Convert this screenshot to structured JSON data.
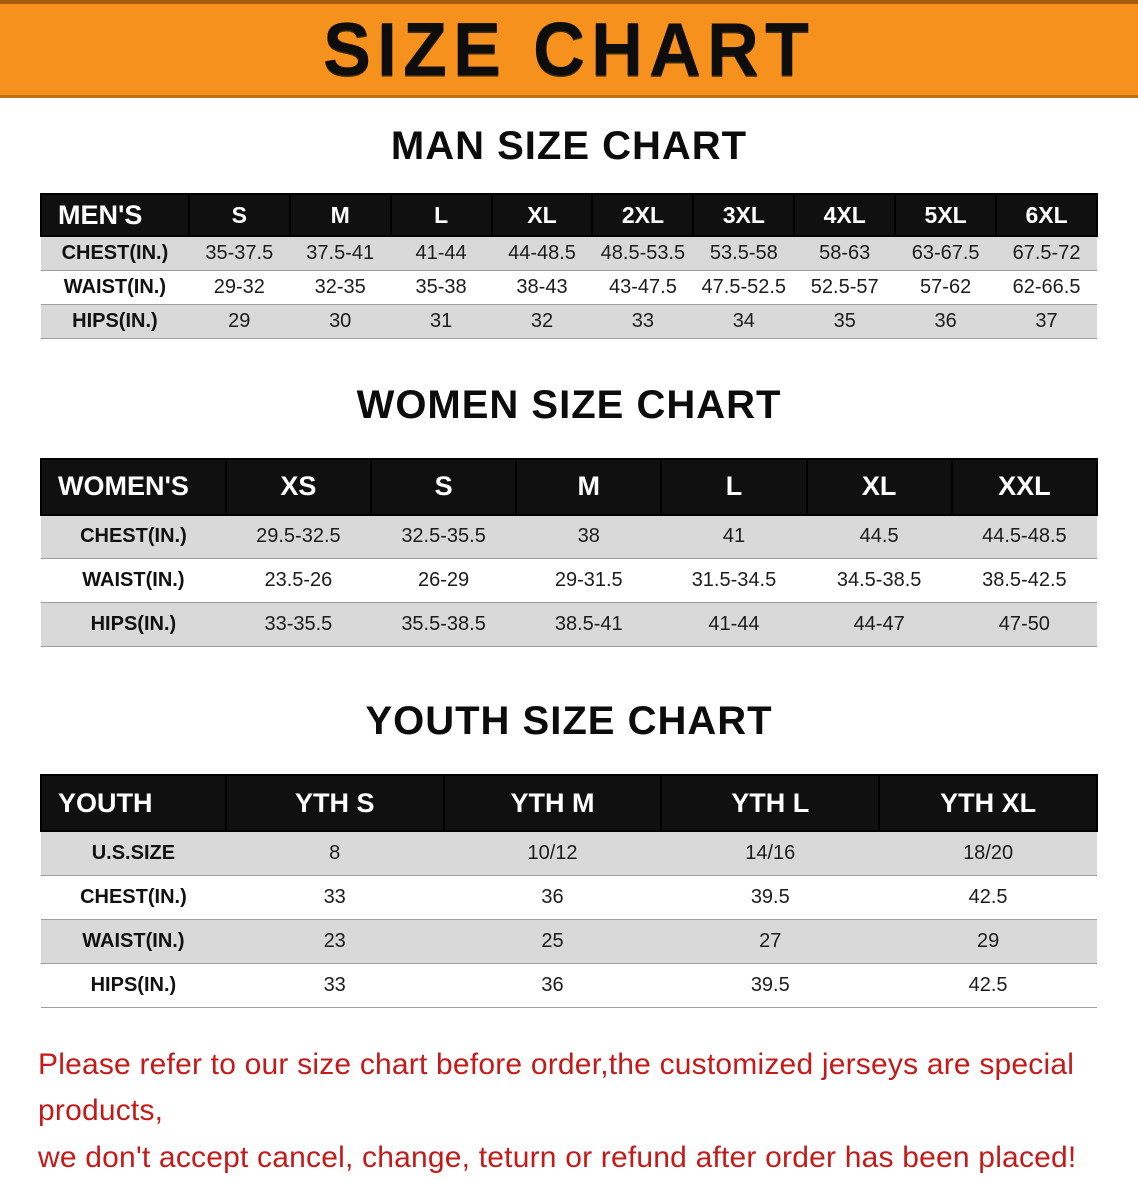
{
  "banner": {
    "title": "SIZE CHART",
    "bg_color": "#f6911e",
    "text_color": "#0d0d0d"
  },
  "men": {
    "heading": "MAN SIZE CHART",
    "header": [
      "MEN'S",
      "S",
      "M",
      "L",
      "XL",
      "2XL",
      "3XL",
      "4XL",
      "5XL",
      "6XL"
    ],
    "rows": [
      {
        "label": "CHEST(IN.)",
        "values": [
          "35-37.5",
          "37.5-41",
          "41-44",
          "44-48.5",
          "48.5-53.5",
          "53.5-58",
          "58-63",
          "63-67.5",
          "67.5-72"
        ]
      },
      {
        "label": "WAIST(IN.)",
        "values": [
          "29-32",
          "32-35",
          "35-38",
          "38-43",
          "43-47.5",
          "47.5-52.5",
          "52.5-57",
          "57-62",
          "62-66.5"
        ]
      },
      {
        "label": "HIPS(IN.)",
        "values": [
          "29",
          "30",
          "31",
          "32",
          "33",
          "34",
          "35",
          "36",
          "37"
        ]
      }
    ]
  },
  "women": {
    "heading": "WOMEN SIZE CHART",
    "header": [
      "WOMEN'S",
      "XS",
      "S",
      "M",
      "L",
      "XL",
      "XXL"
    ],
    "rows": [
      {
        "label": "CHEST(IN.)",
        "values": [
          "29.5-32.5",
          "32.5-35.5",
          "38",
          "41",
          "44.5",
          "44.5-48.5"
        ]
      },
      {
        "label": "WAIST(IN.)",
        "values": [
          "23.5-26",
          "26-29",
          "29-31.5",
          "31.5-34.5",
          "34.5-38.5",
          "38.5-42.5"
        ]
      },
      {
        "label": "HIPS(IN.)",
        "values": [
          "33-35.5",
          "35.5-38.5",
          "38.5-41",
          "41-44",
          "44-47",
          "47-50"
        ]
      }
    ]
  },
  "youth": {
    "heading": "YOUTH SIZE CHART",
    "header": [
      "YOUTH",
      "YTH S",
      "YTH M",
      "YTH L",
      "YTH XL"
    ],
    "rows": [
      {
        "label": "U.S.SIZE",
        "values": [
          "8",
          "10/12",
          "14/16",
          "18/20"
        ]
      },
      {
        "label": "CHEST(IN.)",
        "values": [
          "33",
          "36",
          "39.5",
          "42.5"
        ]
      },
      {
        "label": "WAIST(IN.)",
        "values": [
          "23",
          "25",
          "27",
          "29"
        ]
      },
      {
        "label": "HIPS(IN.)",
        "values": [
          "33",
          "36",
          "39.5",
          "42.5"
        ]
      }
    ]
  },
  "disclaimer": {
    "line1": "Please refer to our size chart before order,the customized jerseys are special products,",
    "line2": "we don't accept cancel, change, teturn or refund after order has been placed!",
    "text_color": "#c41a1a"
  }
}
